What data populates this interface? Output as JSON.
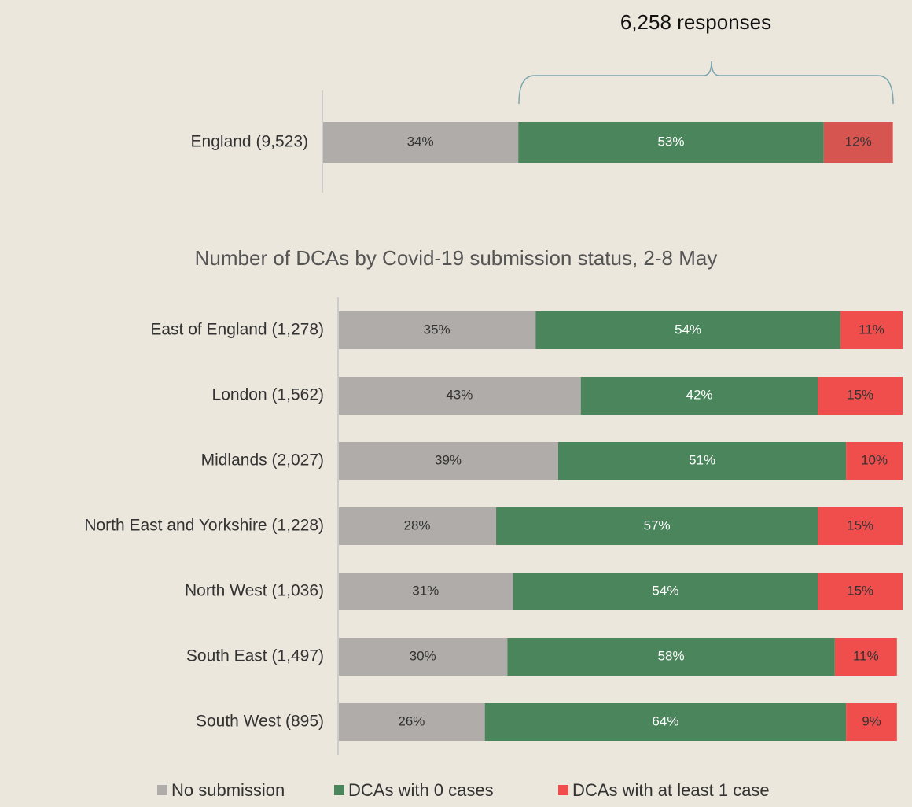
{
  "chart_data": [
    {
      "type": "bar",
      "orientation": "horizontal",
      "stacked": true,
      "annotation": "6,258 responses",
      "categories": [
        "England (9,523)"
      ],
      "xlim": [
        0,
        100
      ],
      "series": [
        {
          "name": "No submission",
          "color": "#b0aca9",
          "values": [
            34
          ],
          "value_labels": [
            "34%"
          ]
        },
        {
          "name": "DCAs with 0 cases",
          "color": "#4a855c",
          "values": [
            53
          ],
          "value_labels": [
            "53%"
          ]
        },
        {
          "name": "DCAs with at least 1 case",
          "color": "#d65550",
          "values": [
            12
          ],
          "value_labels": [
            "12%"
          ]
        }
      ]
    },
    {
      "type": "bar",
      "orientation": "horizontal",
      "stacked": true,
      "title": "Number of DCAs by Covid-19 submission status, 2-8 May",
      "categories": [
        "East of England (1,278)",
        "London (1,562)",
        "Midlands (2,027)",
        "North East and Yorkshire (1,228)",
        "North West (1,036)",
        "South East (1,497)",
        "South West (895)"
      ],
      "xlim": [
        0,
        100
      ],
      "legend": "bottom",
      "series": [
        {
          "name": "No submission",
          "color": "#b0aca9",
          "values": [
            35,
            43,
            39,
            28,
            31,
            30,
            26
          ],
          "value_labels": [
            "35%",
            "43%",
            "39%",
            "28%",
            "31%",
            "30%",
            "26%"
          ]
        },
        {
          "name": "DCAs with 0 cases",
          "color": "#4a855c",
          "values": [
            54,
            42,
            51,
            57,
            54,
            58,
            64
          ],
          "value_labels": [
            "54%",
            "42%",
            "51%",
            "57%",
            "54%",
            "58%",
            "64%"
          ]
        },
        {
          "name": "DCAs with at least 1 case",
          "color": "#f04d4d",
          "values": [
            11,
            15,
            10,
            15,
            15,
            11,
            9
          ],
          "value_labels": [
            "11%",
            "15%",
            "10%",
            "15%",
            "15%",
            "11%",
            "9%"
          ]
        }
      ]
    }
  ]
}
